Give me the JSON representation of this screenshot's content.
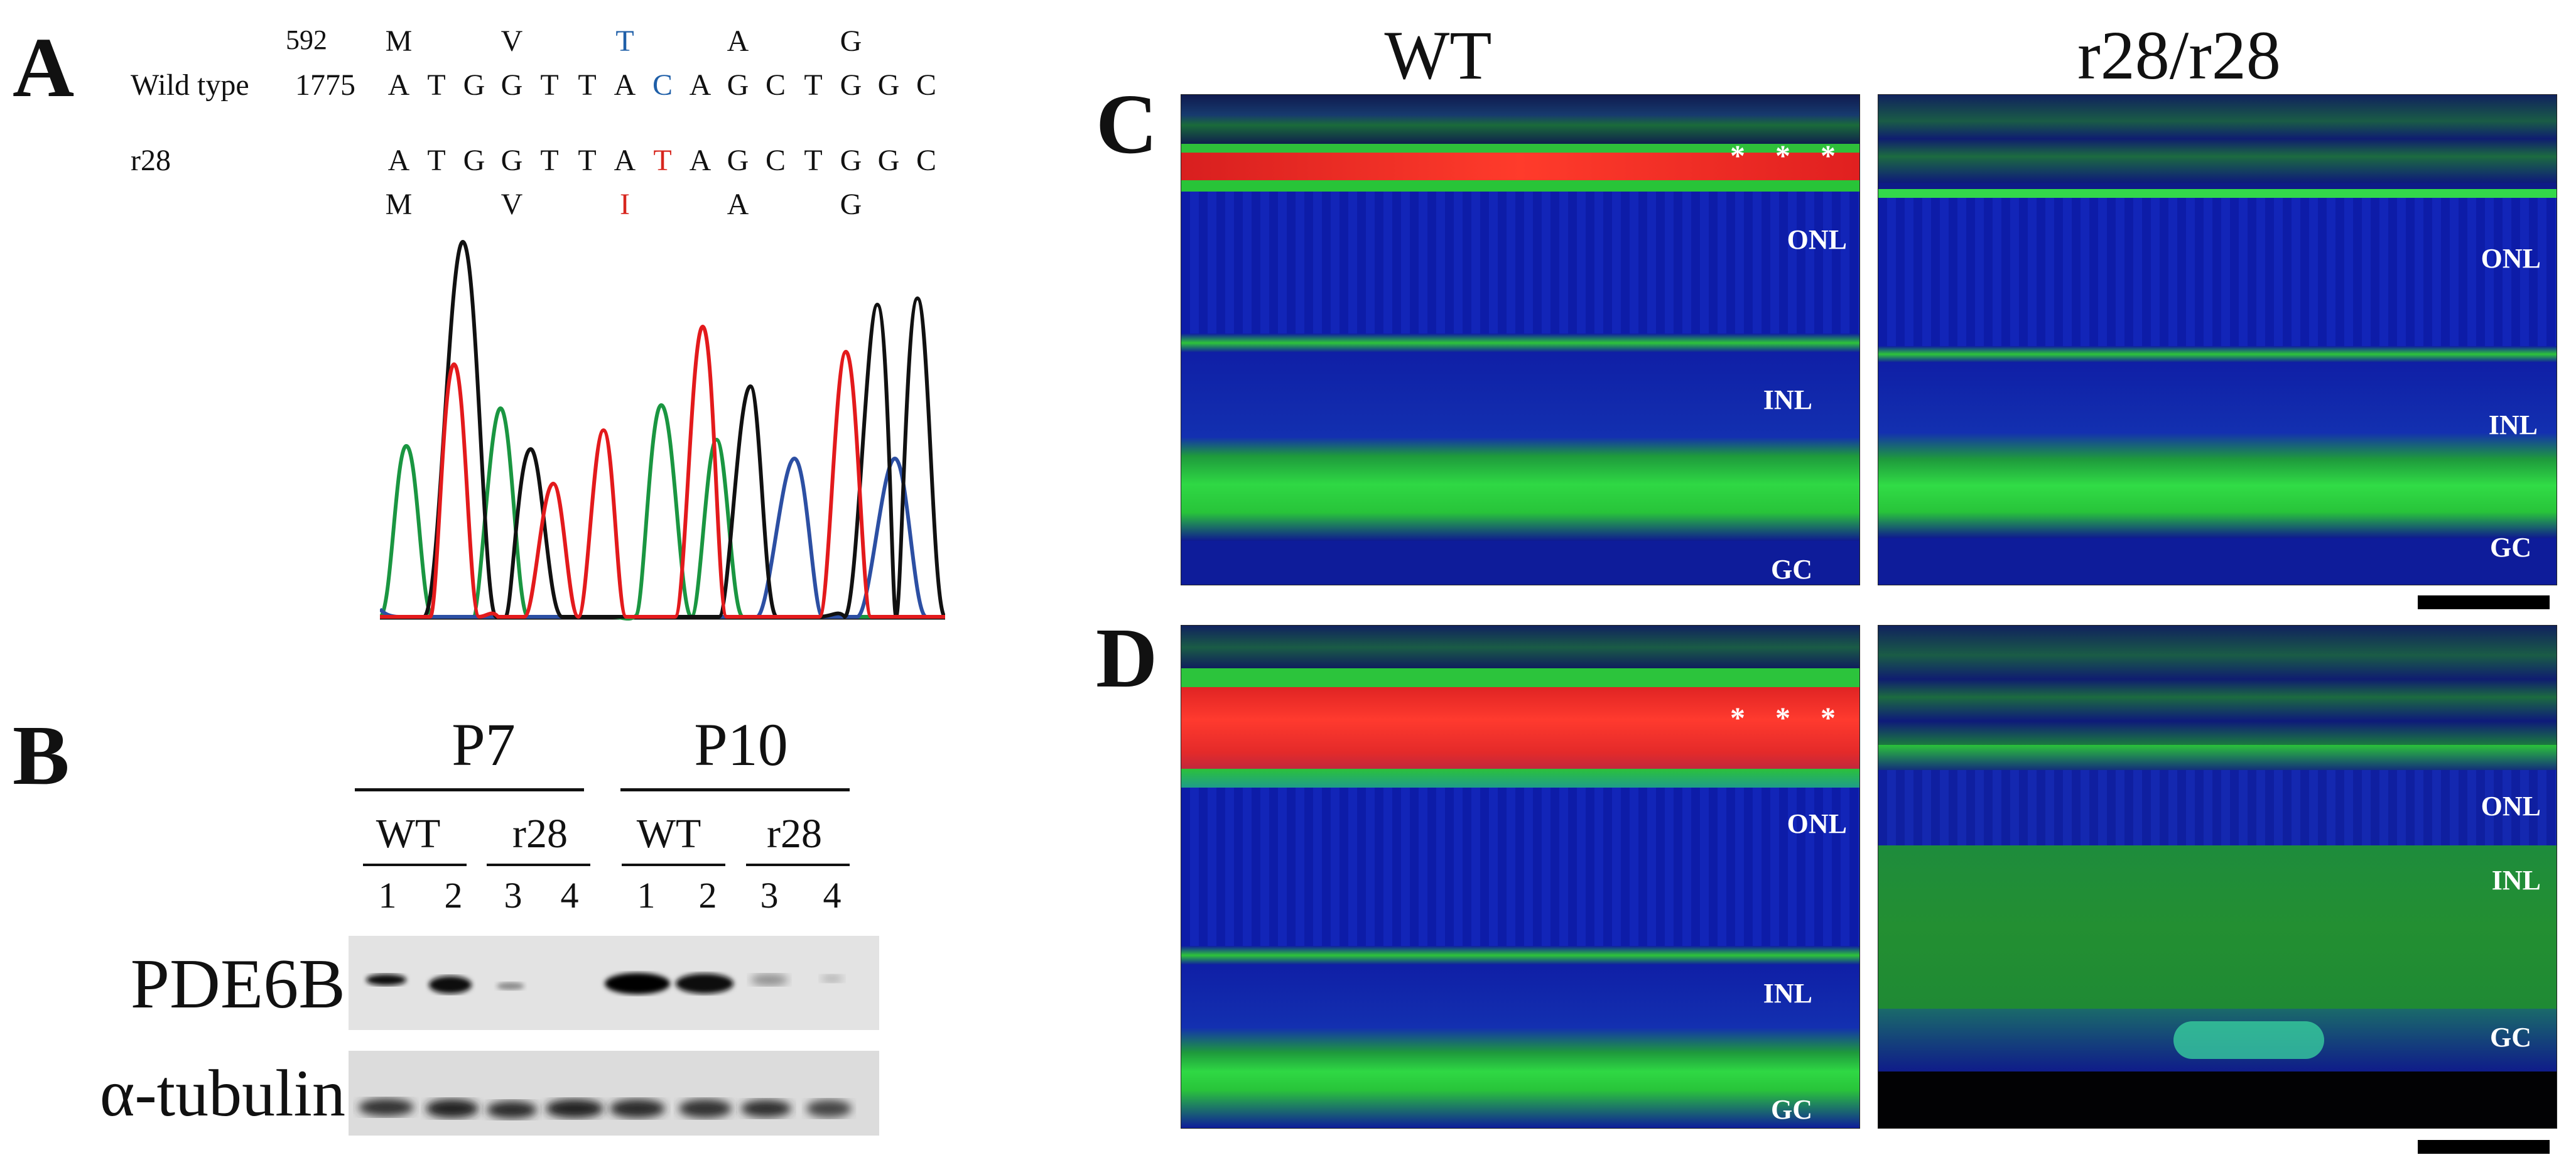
{
  "panel_a": {
    "letter": "A",
    "wt_label": "Wild type",
    "aa_pos": "592",
    "nt_pos": "1775",
    "wt_aa": [
      "M",
      "V",
      "T",
      "A",
      "G"
    ],
    "wt_nt": [
      "A",
      "T",
      "G",
      "G",
      "T",
      "T",
      "A",
      "C",
      "A",
      "G",
      "C",
      "T",
      "G",
      "G",
      "C"
    ],
    "mut_label": "r28",
    "mut_nt": [
      "A",
      "T",
      "G",
      "G",
      "T",
      "T",
      "A",
      "T",
      "A",
      "G",
      "C",
      "T",
      "G",
      "G",
      "C"
    ],
    "mut_aa": [
      "M",
      "V",
      "I",
      "A",
      "G"
    ],
    "colors": {
      "highlight_wt": "#1f5fa8",
      "highlight_mut": "#d7261e",
      "trace_a": "#1a9641",
      "trace_c": "#2c4fa3",
      "trace_g": "#111111",
      "trace_t": "#e31a1c"
    }
  },
  "panel_b": {
    "letter": "B",
    "groups": [
      "P7",
      "P10"
    ],
    "subgroups": [
      "WT",
      "r28",
      "WT",
      "r28"
    ],
    "lanes": [
      "1",
      "2",
      "3",
      "4",
      "1",
      "2",
      "3",
      "4"
    ],
    "rows": [
      "PDE6B",
      "α-tubulin"
    ]
  },
  "panel_cd": {
    "col_titles": [
      "WT",
      "r28/r28"
    ],
    "letter_c": "C",
    "letter_d": "D",
    "stars": "* * *",
    "labels": {
      "onl": "ONL",
      "inl": "INL",
      "gc": "GC"
    }
  }
}
